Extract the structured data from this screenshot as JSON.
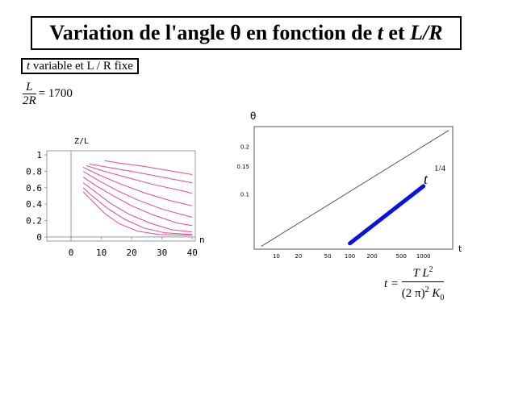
{
  "title": {
    "part1": "Variation de l'angle θ en fonction de ",
    "t": "t",
    "et": " et ",
    "lr": "L/R"
  },
  "subtitle": {
    "t": "t",
    "rest": " variable et L / R fixe"
  },
  "param": {
    "numerator": "L",
    "denominator": "2R",
    "value": "= 1700"
  },
  "formula": {
    "lhs": "t =",
    "numerator": "T L",
    "num_exp": "2",
    "denominator": "(2 π)",
    "den_exp": "2",
    "den_K": "K",
    "den_sub": "0"
  },
  "chart_data": [
    {
      "type": "line",
      "xlabel": "n",
      "ylabel": "Z/L",
      "xlim": [
        -8,
        41
      ],
      "ylim": [
        -0.05,
        1.05
      ],
      "x_ticks": [
        "0",
        "10",
        "20",
        "30",
        "40"
      ],
      "y_ticks": [
        "0",
        "0.2",
        "0.4",
        "0.6",
        "0.8",
        "1"
      ],
      "x_tick_values": [
        0,
        10,
        20,
        30,
        40
      ],
      "y_tick_values": [
        0,
        0.2,
        0.4,
        0.6,
        0.8,
        1
      ],
      "line_color": "#e8459a",
      "grid": false,
      "series": [
        {
          "x": [
            11,
            16,
            24,
            32,
            40
          ],
          "y": [
            0.93,
            0.9,
            0.86,
            0.81,
            0.76
          ]
        },
        {
          "x": [
            6,
            12,
            20,
            30,
            40
          ],
          "y": [
            0.89,
            0.85,
            0.8,
            0.73,
            0.66
          ]
        },
        {
          "x": [
            5,
            10,
            18,
            27,
            37,
            40
          ],
          "y": [
            0.87,
            0.81,
            0.73,
            0.64,
            0.56,
            0.53
          ]
        },
        {
          "x": [
            4,
            9,
            16,
            24,
            33,
            40
          ],
          "y": [
            0.85,
            0.76,
            0.65,
            0.54,
            0.44,
            0.38
          ]
        },
        {
          "x": [
            4,
            9,
            15,
            22,
            30,
            40
          ],
          "y": [
            0.8,
            0.69,
            0.57,
            0.45,
            0.34,
            0.24
          ]
        },
        {
          "x": [
            4,
            8,
            14,
            20,
            27,
            35,
            40
          ],
          "y": [
            0.73,
            0.63,
            0.5,
            0.38,
            0.27,
            0.17,
            0.14
          ]
        },
        {
          "x": [
            4,
            8,
            13,
            19,
            26,
            33,
            40
          ],
          "y": [
            0.66,
            0.55,
            0.41,
            0.28,
            0.17,
            0.09,
            0.06
          ]
        },
        {
          "x": [
            4,
            7,
            12,
            18,
            24,
            31,
            40
          ],
          "y": [
            0.6,
            0.5,
            0.35,
            0.21,
            0.11,
            0.05,
            0.03
          ]
        },
        {
          "x": [
            4,
            7,
            11,
            16,
            22,
            29,
            40
          ],
          "y": [
            0.55,
            0.44,
            0.29,
            0.16,
            0.07,
            0.03,
            0.02
          ]
        }
      ]
    },
    {
      "type": "line",
      "xlabel": "t",
      "ylabel": "θ",
      "x_scale": "log",
      "y_scale": "log",
      "xlim": [
        5,
        2500
      ],
      "ylim": [
        0.045,
        0.27
      ],
      "x_ticks": [
        "10",
        "20",
        "50",
        "100",
        "200",
        "500",
        "1000"
      ],
      "x_tick_values": [
        10,
        20,
        50,
        100,
        200,
        500,
        1000
      ],
      "y_ticks": [
        "0.1",
        "0.15",
        "0.2"
      ],
      "y_tick_values": [
        0.1,
        0.15,
        0.2
      ],
      "grid": false,
      "annotation": {
        "base": "t",
        "exp": "1/4"
      },
      "series": [
        {
          "color": "#555555",
          "x": [
            6.3,
            2200
          ],
          "y": [
            0.047,
            0.255
          ]
        },
        {
          "color": "#0a14e0",
          "x": [
            100,
            1000
          ],
          "y": [
            0.049,
            0.113
          ]
        }
      ]
    }
  ]
}
